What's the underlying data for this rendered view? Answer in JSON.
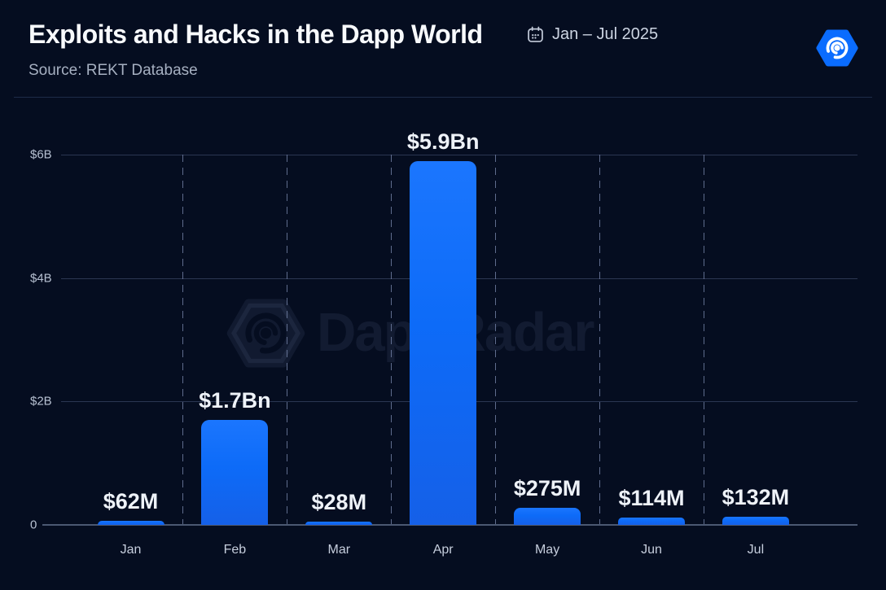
{
  "header": {
    "title": "Exploits and Hacks in the Dapp World",
    "period": "Jan – Jul 2025",
    "source": "Source: REKT Database"
  },
  "branding": {
    "watermark_text": "DappRadar",
    "logo_name": "dappradar-hexagon-swirl-logo",
    "logo_color": "#0a6cff"
  },
  "chart_data": {
    "type": "bar",
    "title": "Exploits and Hacks in the Dapp World",
    "period": "Jan – Jul 2025",
    "source": "REKT Database",
    "categories": [
      "Jan",
      "Feb",
      "Mar",
      "Apr",
      "May",
      "Jun",
      "Jul"
    ],
    "values_usd_millions": [
      62,
      1700,
      28,
      5900,
      275,
      114,
      132
    ],
    "bar_labels": [
      "$62M",
      "$1.7Bn",
      "$28M",
      "$5.9Bn",
      "$275M",
      "$114M",
      "$132M"
    ],
    "y_ticks": [
      {
        "label": "0",
        "value": 0
      },
      {
        "label": "$2B",
        "value": 2000
      },
      {
        "label": "$4B",
        "value": 4000
      },
      {
        "label": "$6B",
        "value": 6000
      }
    ],
    "ylim": [
      0,
      6000
    ],
    "xlabel": "",
    "ylabel": "",
    "legend": "none",
    "grid": {
      "horizontal": "solid",
      "vertical": "dashed between categories"
    },
    "bar_color_top": "#1b76fe",
    "bar_color_bottom": "#1560e8",
    "background_color": "#050d20"
  }
}
